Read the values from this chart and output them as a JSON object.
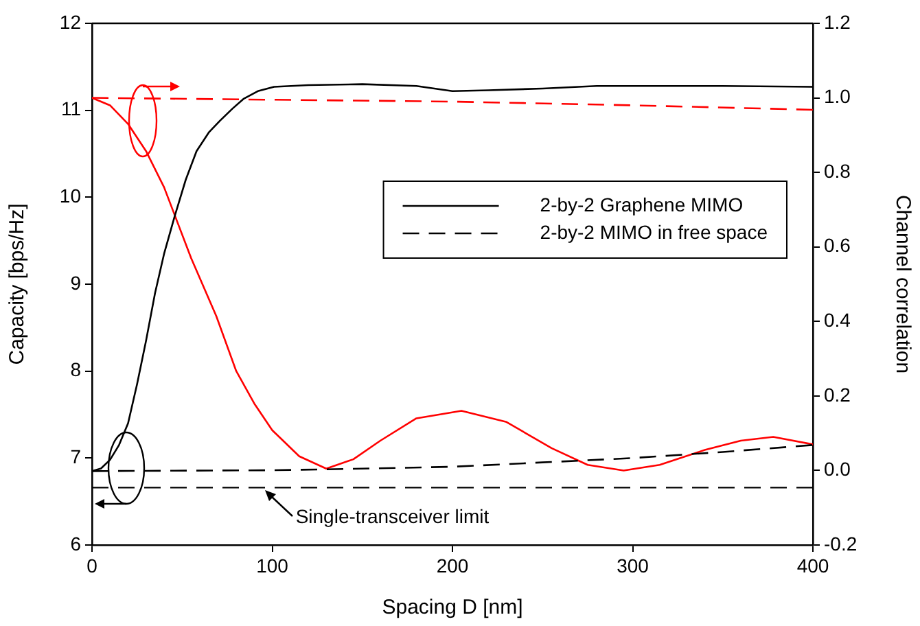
{
  "chart_data": {
    "type": "line",
    "xlabel": "Spacing D [nm]",
    "ylabel": "Capacity [bps/Hz]",
    "y2label": "Channel correlation",
    "xlim": [
      0,
      400
    ],
    "xticks": [
      0,
      100,
      200,
      300,
      400
    ],
    "ylim": [
      6,
      12
    ],
    "yticks": [
      6,
      7,
      8,
      9,
      10,
      11,
      12
    ],
    "y2lim": [
      -0.2,
      1.2
    ],
    "y2ticks": [
      -0.2,
      {
        "value": 0,
        "label": "0.0"
      },
      0.2,
      0.4,
      0.6,
      0.8,
      {
        "value": 1,
        "label": "1.0"
      },
      1.2
    ],
    "grid": false,
    "legend": "right",
    "marker": "none",
    "series": [
      {
        "name": "2-by-2 Graphene MIMO",
        "color": "#000000",
        "line_style": "solid",
        "x": [
          0,
          5,
          10,
          15,
          20,
          25,
          30,
          35,
          40,
          46,
          52,
          58,
          65,
          71,
          78,
          84,
          92,
          101,
          120,
          150,
          180,
          200,
          220,
          250,
          280,
          300,
          350,
          400
        ],
        "values": [
          6.85,
          6.88,
          6.98,
          7.15,
          7.4,
          7.85,
          8.35,
          8.9,
          9.35,
          9.79,
          10.2,
          10.53,
          10.75,
          10.88,
          11.02,
          11.13,
          11.22,
          11.27,
          11.29,
          11.3,
          11.28,
          11.22,
          11.23,
          11.25,
          11.28,
          11.28,
          11.28,
          11.27
        ]
      },
      {
        "name": "2-by-2 MIMO in free space",
        "color": "#000000",
        "line_style": "dashed",
        "x": [
          0,
          100,
          130,
          200,
          250,
          300,
          350,
          400
        ],
        "values": [
          6.85,
          6.86,
          6.87,
          6.9,
          6.95,
          7.0,
          7.07,
          7.15
        ]
      },
      {
        "color": "#ff0000",
        "line_style": "solid",
        "axis": "y2",
        "x": [
          0,
          10,
          20,
          30,
          40,
          46,
          55,
          69,
          80,
          90,
          100,
          115,
          130,
          145,
          160,
          180,
          205,
          230,
          255,
          275,
          295,
          315,
          340,
          360,
          378,
          400
        ],
        "values": [
          1.0,
          0.98,
          0.93,
          0.857,
          0.76,
          0.684,
          0.57,
          0.414,
          0.267,
          0.18,
          0.108,
          0.038,
          0.005,
          0.03,
          0.08,
          0.14,
          0.16,
          0.13,
          0.06,
          0.015,
          0.0,
          0.015,
          0.055,
          0.08,
          0.09,
          0.07
        ]
      },
      {
        "color": "#ff0000",
        "line_style": "dashed",
        "axis": "y2",
        "x": [
          0,
          200,
          300,
          400
        ],
        "values": [
          1.0,
          0.99,
          0.98,
          0.968
        ]
      }
    ],
    "ref_lines": [
      {
        "axis": "y",
        "value": 6.66,
        "color": "#000000",
        "line_style": "dashed"
      }
    ],
    "annotations": [
      {
        "text": "Single-transceiver limit",
        "x": 97,
        "y": 6.66
      }
    ]
  }
}
